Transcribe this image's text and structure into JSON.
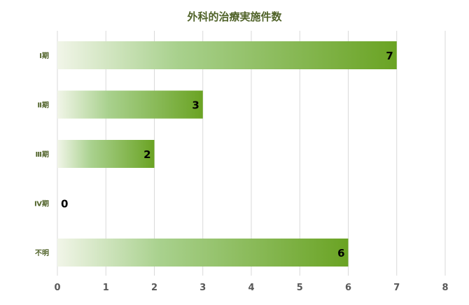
{
  "chart_data": {
    "type": "bar",
    "orientation": "horizontal",
    "title": "外科的治療実施件数",
    "categories": [
      "Ⅰ期",
      "Ⅱ期",
      "Ⅲ期",
      "Ⅳ期",
      "不明"
    ],
    "values": [
      7,
      3,
      2,
      0,
      6
    ],
    "xlim": [
      0,
      8
    ],
    "xticks": [
      "0",
      "1",
      "2",
      "3",
      "4",
      "5",
      "6",
      "7",
      "8"
    ],
    "data_labels": [
      "7",
      "3",
      "2",
      "0",
      "6"
    ],
    "xlabel": "",
    "ylabel": "",
    "grid": "vertical",
    "legend": "none",
    "colors": {
      "bar_start": "#f1f5e8",
      "bar_mid": "#a9d18e",
      "bar_end": "#6aa323",
      "title": "#4f6228",
      "category_text": "#4f6228",
      "tick_text": "#595959",
      "data_label_text": "#000000",
      "grid": "#d9d9d9"
    }
  }
}
